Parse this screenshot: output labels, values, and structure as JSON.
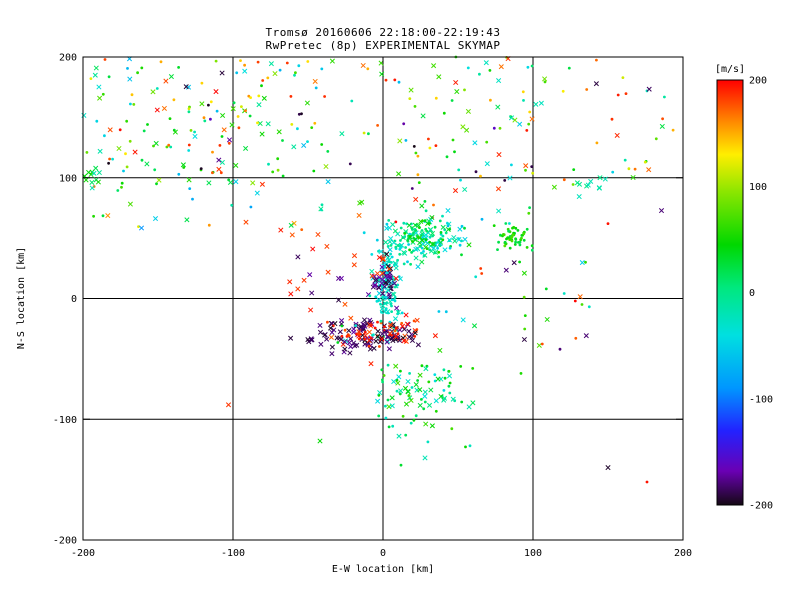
{
  "chart_data": {
    "type": "scatter",
    "title": "Tromsø 20160606 22:18:00-22:19:43",
    "subtitle": "RwPretec (8p) EXPERIMENTAL SKYMAP",
    "xlabel": "E-W location [km]",
    "ylabel": "N-S location [km]",
    "xlim": [
      -200,
      200
    ],
    "ylim": [
      -200,
      200
    ],
    "xticks": [
      -200,
      -100,
      0,
      100,
      200
    ],
    "yticks": [
      -200,
      -100,
      0,
      100,
      200
    ],
    "grid": true,
    "marker_types": [
      "dot",
      "x"
    ],
    "colors": {
      "title": "#b22222",
      "subtitle": "#008b8b",
      "axis": "#000000",
      "colorbar_label": "#cc0000",
      "background": "#ffffff"
    },
    "colorbar": {
      "label": "[m/s]",
      "lim": [
        -200,
        200
      ],
      "ticks": [
        200,
        100,
        0,
        -100,
        -200
      ],
      "stops": [
        [
          200,
          "#ff0000"
        ],
        [
          160,
          "#ff8c00"
        ],
        [
          130,
          "#ffee00"
        ],
        [
          95,
          "#8ce600"
        ],
        [
          45,
          "#00d800"
        ],
        [
          5,
          "#00e87d"
        ],
        [
          -40,
          "#00e0e0"
        ],
        [
          -90,
          "#0096ff"
        ],
        [
          -130,
          "#2222ff"
        ],
        [
          -168,
          "#6a00b4"
        ],
        [
          -200,
          "#140814"
        ]
      ]
    },
    "clusters": [
      {
        "region": "upper-left-green",
        "dist": "uniform",
        "x0": -200,
        "x1": -30,
        "y0": 95,
        "y1": 200,
        "n": 70,
        "vmin": 15,
        "vmax": 100,
        "marker": "mix"
      },
      {
        "region": "upper-left-cyan",
        "dist": "uniform",
        "x0": -200,
        "x1": -30,
        "y0": 95,
        "y1": 200,
        "n": 40,
        "vmin": -70,
        "vmax": 0,
        "marker": "mix"
      },
      {
        "region": "upper-left-yellow",
        "dist": "uniform",
        "x0": -195,
        "x1": -35,
        "y0": 100,
        "y1": 200,
        "n": 20,
        "vmin": 110,
        "vmax": 160,
        "marker": "dot"
      },
      {
        "region": "upper-left-red",
        "dist": "uniform",
        "x0": -200,
        "x1": -30,
        "y0": 100,
        "y1": 200,
        "n": 25,
        "vmin": 165,
        "vmax": 200,
        "marker": "mix"
      },
      {
        "region": "upper-left-dark",
        "dist": "uniform",
        "x0": -195,
        "x1": -40,
        "y0": 100,
        "y1": 195,
        "n": 10,
        "vmin": -200,
        "vmax": -150,
        "marker": "mix"
      },
      {
        "region": "left-band",
        "dist": "uniform",
        "x0": -200,
        "x1": -40,
        "y0": 55,
        "y1": 95,
        "n": 25,
        "vmin": -100,
        "vmax": 200,
        "marker": "mix"
      },
      {
        "region": "left-edge-100",
        "dist": "gauss",
        "cx": -193,
        "cy": 100,
        "sx": 4,
        "sy": 5,
        "n": 12,
        "vmin": -20,
        "vmax": 60,
        "marker": "x"
      },
      {
        "region": "top-mid-green",
        "dist": "uniform",
        "x0": -30,
        "x1": 110,
        "y0": 60,
        "y1": 200,
        "n": 40,
        "vmin": 10,
        "vmax": 100,
        "marker": "mix"
      },
      {
        "region": "top-mid-cyan",
        "dist": "uniform",
        "x0": -30,
        "x1": 110,
        "y0": 60,
        "y1": 200,
        "n": 25,
        "vmin": -70,
        "vmax": -5,
        "marker": "mix"
      },
      {
        "region": "top-mid-red",
        "dist": "uniform",
        "x0": -25,
        "x1": 110,
        "y0": 60,
        "y1": 200,
        "n": 20,
        "vmin": 160,
        "vmax": 200,
        "marker": "mix"
      },
      {
        "region": "top-mid-yellow",
        "dist": "uniform",
        "x0": -20,
        "x1": 105,
        "y0": 70,
        "y1": 200,
        "n": 12,
        "vmin": 115,
        "vmax": 155,
        "marker": "dot"
      },
      {
        "region": "top-mid-dark",
        "dist": "uniform",
        "x0": -25,
        "x1": 100,
        "y0": 65,
        "y1": 195,
        "n": 8,
        "vmin": -200,
        "vmax": -160,
        "marker": "mix"
      },
      {
        "region": "top-right-red",
        "dist": "uniform",
        "x0": 110,
        "x1": 200,
        "y0": 60,
        "y1": 200,
        "n": 10,
        "vmin": 165,
        "vmax": 200,
        "marker": "mix"
      },
      {
        "region": "top-right-green",
        "dist": "uniform",
        "x0": 110,
        "x1": 195,
        "y0": 60,
        "y1": 195,
        "n": 8,
        "vmin": 20,
        "vmax": 90,
        "marker": "mix"
      },
      {
        "region": "top-right-yellow",
        "dist": "uniform",
        "x0": 115,
        "x1": 195,
        "y0": 70,
        "y1": 195,
        "n": 6,
        "vmin": 115,
        "vmax": 155,
        "marker": "dot"
      },
      {
        "region": "top-right-cyan",
        "dist": "uniform",
        "x0": 110,
        "x1": 190,
        "y0": 65,
        "y1": 190,
        "n": 4,
        "vmin": -60,
        "vmax": -10,
        "marker": "dot"
      },
      {
        "region": "top-right-dark",
        "dist": "uniform",
        "x0": 115,
        "x1": 190,
        "y0": 70,
        "y1": 185,
        "n": 3,
        "vmin": -200,
        "vmax": -165,
        "marker": "x"
      },
      {
        "region": "teal-x-east",
        "dist": "gauss",
        "cx": 137,
        "cy": 92,
        "sx": 5,
        "sy": 5,
        "n": 10,
        "vmin": -30,
        "vmax": 10,
        "marker": "x"
      },
      {
        "region": "central-teal-blob",
        "dist": "gauss",
        "cx": 22,
        "cy": 50,
        "sx": 14,
        "sy": 10,
        "n": 130,
        "vmin": -55,
        "vmax": 15,
        "marker": "mix"
      },
      {
        "region": "central-green-blob",
        "dist": "gauss",
        "cx": 30,
        "cy": 56,
        "sx": 10,
        "sy": 8,
        "n": 50,
        "vmin": 10,
        "vmax": 60,
        "marker": "mix"
      },
      {
        "region": "column-cyan",
        "dist": "gauss",
        "cx": 3,
        "cy": 18,
        "sx": 4,
        "sy": 10,
        "n": 80,
        "vmin": -50,
        "vmax": -10,
        "marker": "mix"
      },
      {
        "region": "column-black",
        "dist": "gauss",
        "cx": 2,
        "cy": 14,
        "sx": 4,
        "sy": 9,
        "n": 35,
        "vmin": -200,
        "vmax": -165,
        "marker": "x"
      },
      {
        "region": "column-red",
        "dist": "gauss",
        "cx": 0,
        "cy": 22,
        "sx": 4,
        "sy": 8,
        "n": 8,
        "vmin": 175,
        "vmax": 200,
        "marker": "x"
      },
      {
        "region": "below-column-cyan",
        "dist": "gauss",
        "cx": 4,
        "cy": -5,
        "sx": 5,
        "sy": 6,
        "n": 30,
        "vmin": -45,
        "vmax": -10,
        "marker": "mix"
      },
      {
        "region": "south-black",
        "dist": "gauss",
        "cx": -12,
        "cy": -30,
        "sx": 13,
        "sy": 7,
        "n": 70,
        "vmin": -200,
        "vmax": -170,
        "marker": "x"
      },
      {
        "region": "south-red",
        "dist": "gauss",
        "cx": -5,
        "cy": -28,
        "sx": 12,
        "sy": 7,
        "n": 45,
        "vmin": 170,
        "vmax": 200,
        "marker": "mix"
      },
      {
        "region": "south-mixed",
        "dist": "gauss",
        "cx": -8,
        "cy": -30,
        "sx": 12,
        "sy": 7,
        "n": 12,
        "vmin": -40,
        "vmax": 40,
        "marker": "mix"
      },
      {
        "region": "south-black-west",
        "dist": "gauss",
        "cx": -40,
        "cy": -33,
        "sx": 8,
        "sy": 5,
        "n": 15,
        "vmin": -200,
        "vmax": -175,
        "marker": "x"
      },
      {
        "region": "south-black-east",
        "dist": "gauss",
        "cx": 12,
        "cy": -30,
        "sx": 8,
        "sy": 5,
        "n": 25,
        "vmin": -200,
        "vmax": -175,
        "marker": "x"
      },
      {
        "region": "south-red-east",
        "dist": "gauss",
        "cx": 14,
        "cy": -28,
        "sx": 8,
        "sy": 5,
        "n": 15,
        "vmin": 170,
        "vmax": 200,
        "marker": "mix"
      },
      {
        "region": "green-blob-east",
        "dist": "gauss",
        "cx": 86,
        "cy": 52,
        "sx": 6,
        "sy": 5,
        "n": 55,
        "vmin": 15,
        "vmax": 75,
        "marker": "dot"
      },
      {
        "region": "midleft-red-x",
        "dist": "uniform",
        "x0": -75,
        "x1": -15,
        "y0": -15,
        "y1": 60,
        "n": 14,
        "vmin": 175,
        "vmax": 200,
        "marker": "x"
      },
      {
        "region": "midleft-black-x",
        "dist": "uniform",
        "x0": -70,
        "x1": -20,
        "y0": -10,
        "y1": 55,
        "n": 6,
        "vmin": -200,
        "vmax": -170,
        "marker": "x"
      },
      {
        "region": "lower-green-cluster",
        "dist": "gauss",
        "cx": 25,
        "cy": -80,
        "sx": 17,
        "sy": 13,
        "n": 65,
        "vmin": -45,
        "vmax": 75,
        "marker": "mix"
      },
      {
        "region": "lower-tail",
        "dist": "uniform",
        "x0": -15,
        "x1": 60,
        "y0": -125,
        "y1": -55,
        "n": 25,
        "vmin": -40,
        "vmax": 60,
        "marker": "mix"
      },
      {
        "region": "midright-green",
        "dist": "uniform",
        "x0": 35,
        "x1": 145,
        "y0": -45,
        "y1": 45,
        "n": 12,
        "vmin": 15,
        "vmax": 90,
        "marker": "mix"
      },
      {
        "region": "midright-cyan",
        "dist": "uniform",
        "x0": 35,
        "x1": 140,
        "y0": -40,
        "y1": 45,
        "n": 8,
        "vmin": -60,
        "vmax": -10,
        "marker": "mix"
      },
      {
        "region": "midright-red",
        "dist": "uniform",
        "x0": 40,
        "x1": 145,
        "y0": -40,
        "y1": 45,
        "n": 6,
        "vmin": 170,
        "vmax": 200,
        "marker": "mix"
      },
      {
        "region": "midright-dark",
        "dist": "uniform",
        "x0": 40,
        "x1": 140,
        "y0": -35,
        "y1": 40,
        "n": 4,
        "vmin": -200,
        "vmax": -170,
        "marker": "x"
      }
    ],
    "extra_points": [
      [
        150,
        -140,
        -195,
        "x"
      ],
      [
        176,
        -152,
        195,
        "dot"
      ],
      [
        -42,
        -118,
        45,
        "x"
      ],
      [
        58,
        -122,
        -25,
        "dot"
      ],
      [
        92,
        -62,
        55,
        "dot"
      ],
      [
        -103,
        -88,
        185,
        "x"
      ],
      [
        -8,
        -54,
        190,
        "x"
      ],
      [
        118,
        -42,
        -180,
        "dot"
      ],
      [
        12,
        -138,
        30,
        "dot"
      ],
      [
        28,
        -132,
        -20,
        "x"
      ],
      [
        -148,
        196,
        150,
        "dot"
      ],
      [
        -95,
        197,
        140,
        "dot"
      ],
      [
        150,
        62,
        195,
        "dot"
      ],
      [
        135,
        30,
        60,
        "dot"
      ]
    ]
  }
}
